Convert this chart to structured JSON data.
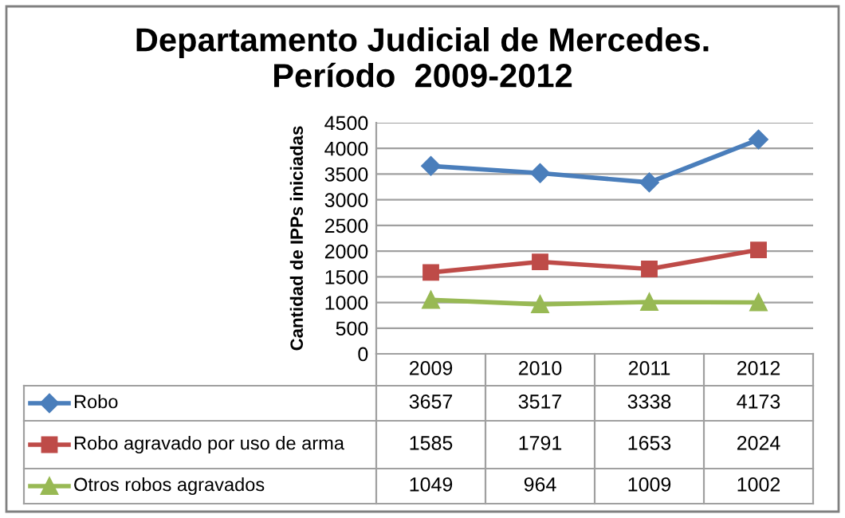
{
  "chart_data": {
    "type": "line",
    "title": "Departamento Judicial de Mercedes.\nPeríodo  2009-2012",
    "ylabel": "Cantidad de IPPs iniciadas",
    "categories": [
      "2009",
      "2010",
      "2011",
      "2012"
    ],
    "series": [
      {
        "name": "Robo",
        "color": "#4a7ebb",
        "marker": "diamond",
        "values": [
          3657,
          3517,
          3338,
          4173
        ]
      },
      {
        "name": "Robo agravado por uso de arma",
        "color": "#be4b48",
        "marker": "square",
        "values": [
          1585,
          1791,
          1653,
          2024
        ]
      },
      {
        "name": "Otros robos agravados",
        "color": "#98b954",
        "marker": "triangle",
        "values": [
          1049,
          964,
          1009,
          1002
        ]
      }
    ],
    "ylim": [
      0,
      4500
    ],
    "yticks": [
      0,
      500,
      1000,
      1500,
      2000,
      2500,
      3000,
      3500,
      4000,
      4500
    ],
    "grid": "y",
    "legend": "bottom",
    "data_labels": true,
    "line_style": "solid"
  }
}
